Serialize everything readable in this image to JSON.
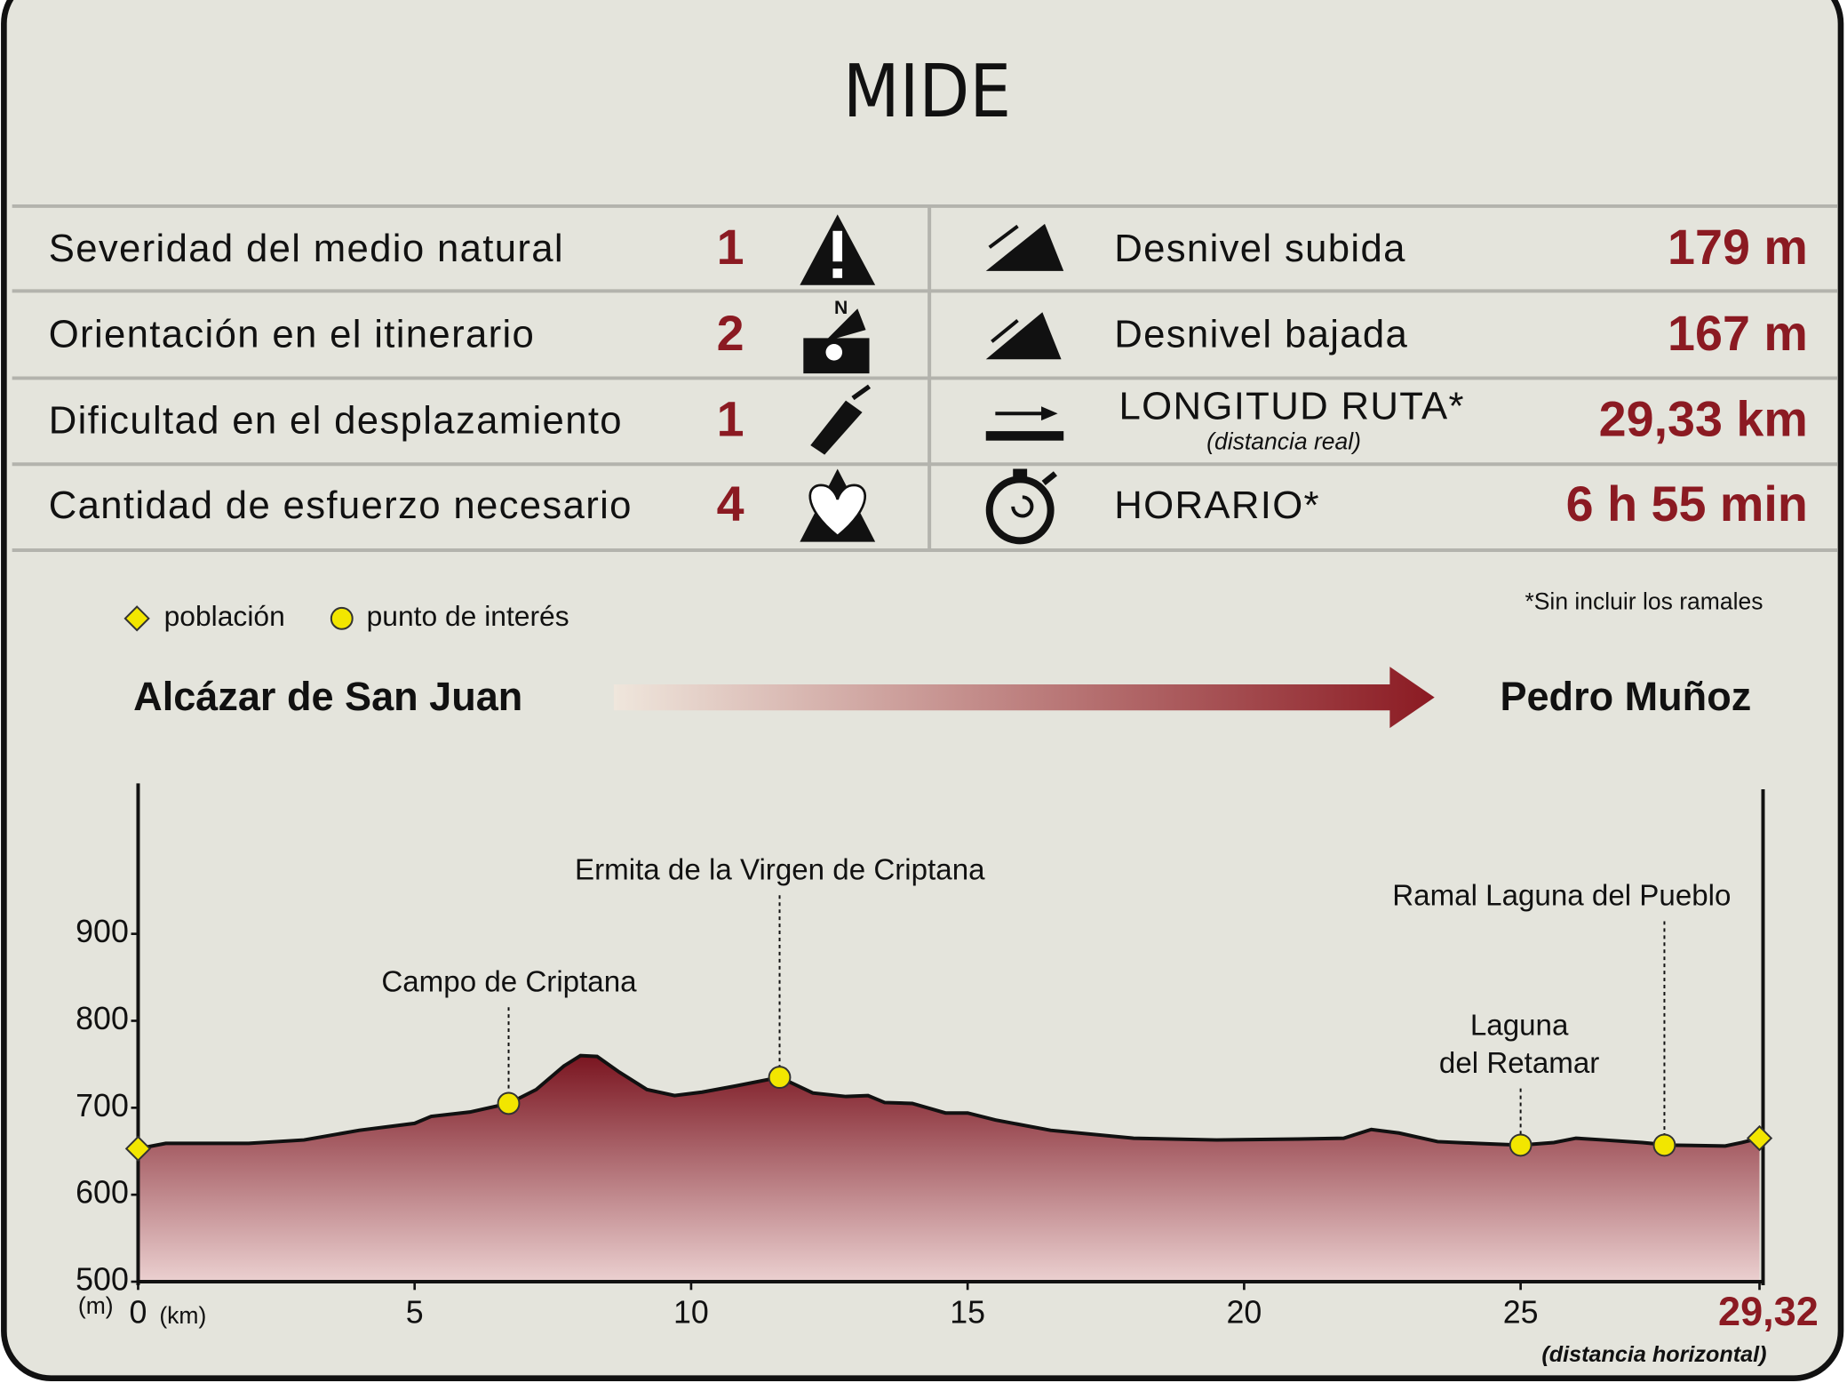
{
  "title": "MIDE",
  "mide": [
    {
      "label": "Severidad del medio natural",
      "value": 1
    },
    {
      "label": "Orientación en el itinerario",
      "value": 2
    },
    {
      "label": "Dificultad en el desplazamiento",
      "value": 1
    },
    {
      "label": "Cantidad de esfuerzo necesario",
      "value": 4
    }
  ],
  "stats": [
    {
      "label": "Desnivel subida",
      "value": "179 m"
    },
    {
      "label": "Desnivel bajada",
      "value": "167 m"
    },
    {
      "label": "LONGITUD RUTA*",
      "sublabel": "(distancia real)",
      "value": "29,33 km"
    },
    {
      "label": "HORARIO*",
      "value": "6 h 55 min"
    }
  ],
  "legend": [
    "población",
    "punto de interés"
  ],
  "note": "*Sin incluir los ramales",
  "route": {
    "from": "Alcázar de San Juan",
    "to": "Pedro Muñoz"
  },
  "chart_data": {
    "type": "area",
    "x": [
      0,
      0.5,
      2,
      3,
      4,
      5,
      5.3,
      6,
      6.7,
      7.2,
      7.7,
      8.0,
      8.3,
      8.7,
      9.2,
      9.7,
      10.2,
      10.8,
      11.6,
      12.2,
      12.8,
      13.2,
      13.5,
      14.0,
      14.6,
      15.0,
      15.5,
      16.5,
      18,
      19.5,
      21,
      21.8,
      22.3,
      22.8,
      23.5,
      24.2,
      25,
      25.6,
      26,
      26.5,
      27.2,
      27.7,
      28.7,
      29.0,
      29.32
    ],
    "values": [
      653,
      659,
      659,
      663,
      674,
      682,
      690,
      695,
      705,
      721,
      748,
      760,
      759,
      741,
      721,
      714,
      718,
      725,
      735,
      717,
      713,
      714,
      706,
      705,
      694,
      694,
      686,
      674,
      665,
      663,
      664,
      665,
      675,
      671,
      661,
      659,
      657,
      660,
      665,
      663,
      660,
      657,
      656,
      660,
      665
    ],
    "color": "#8b1a22",
    "xlim": [
      0,
      29.32
    ],
    "ylim": [
      500,
      1073
    ],
    "xticks": [
      0,
      5,
      10,
      15,
      20,
      25,
      {
        "value": 29.32,
        "label": "29,32"
      }
    ],
    "yticks": [
      500,
      600,
      700,
      800,
      900
    ],
    "y_unit": "(m)",
    "x_unit": "(km)",
    "x_note": "(distancia horizontal)",
    "markers": [
      {
        "x": 0,
        "y": 653,
        "shape": "diamond"
      },
      {
        "x": 6.7,
        "y": 705,
        "shape": "circle",
        "label": [
          "Campo de Criptana"
        ]
      },
      {
        "x": 11.6,
        "y": 735,
        "shape": "circle",
        "label": [
          "Ermita de la Virgen de Criptana"
        ]
      },
      {
        "x": 25,
        "y": 657,
        "shape": "circle",
        "label": [
          "Laguna",
          "del Retamar"
        ]
      },
      {
        "x": 27.6,
        "y": 657,
        "shape": "circle",
        "label": [
          "Ramal Laguna del Pueblo"
        ]
      },
      {
        "x": 29.32,
        "y": 665,
        "shape": "diamond"
      }
    ]
  }
}
